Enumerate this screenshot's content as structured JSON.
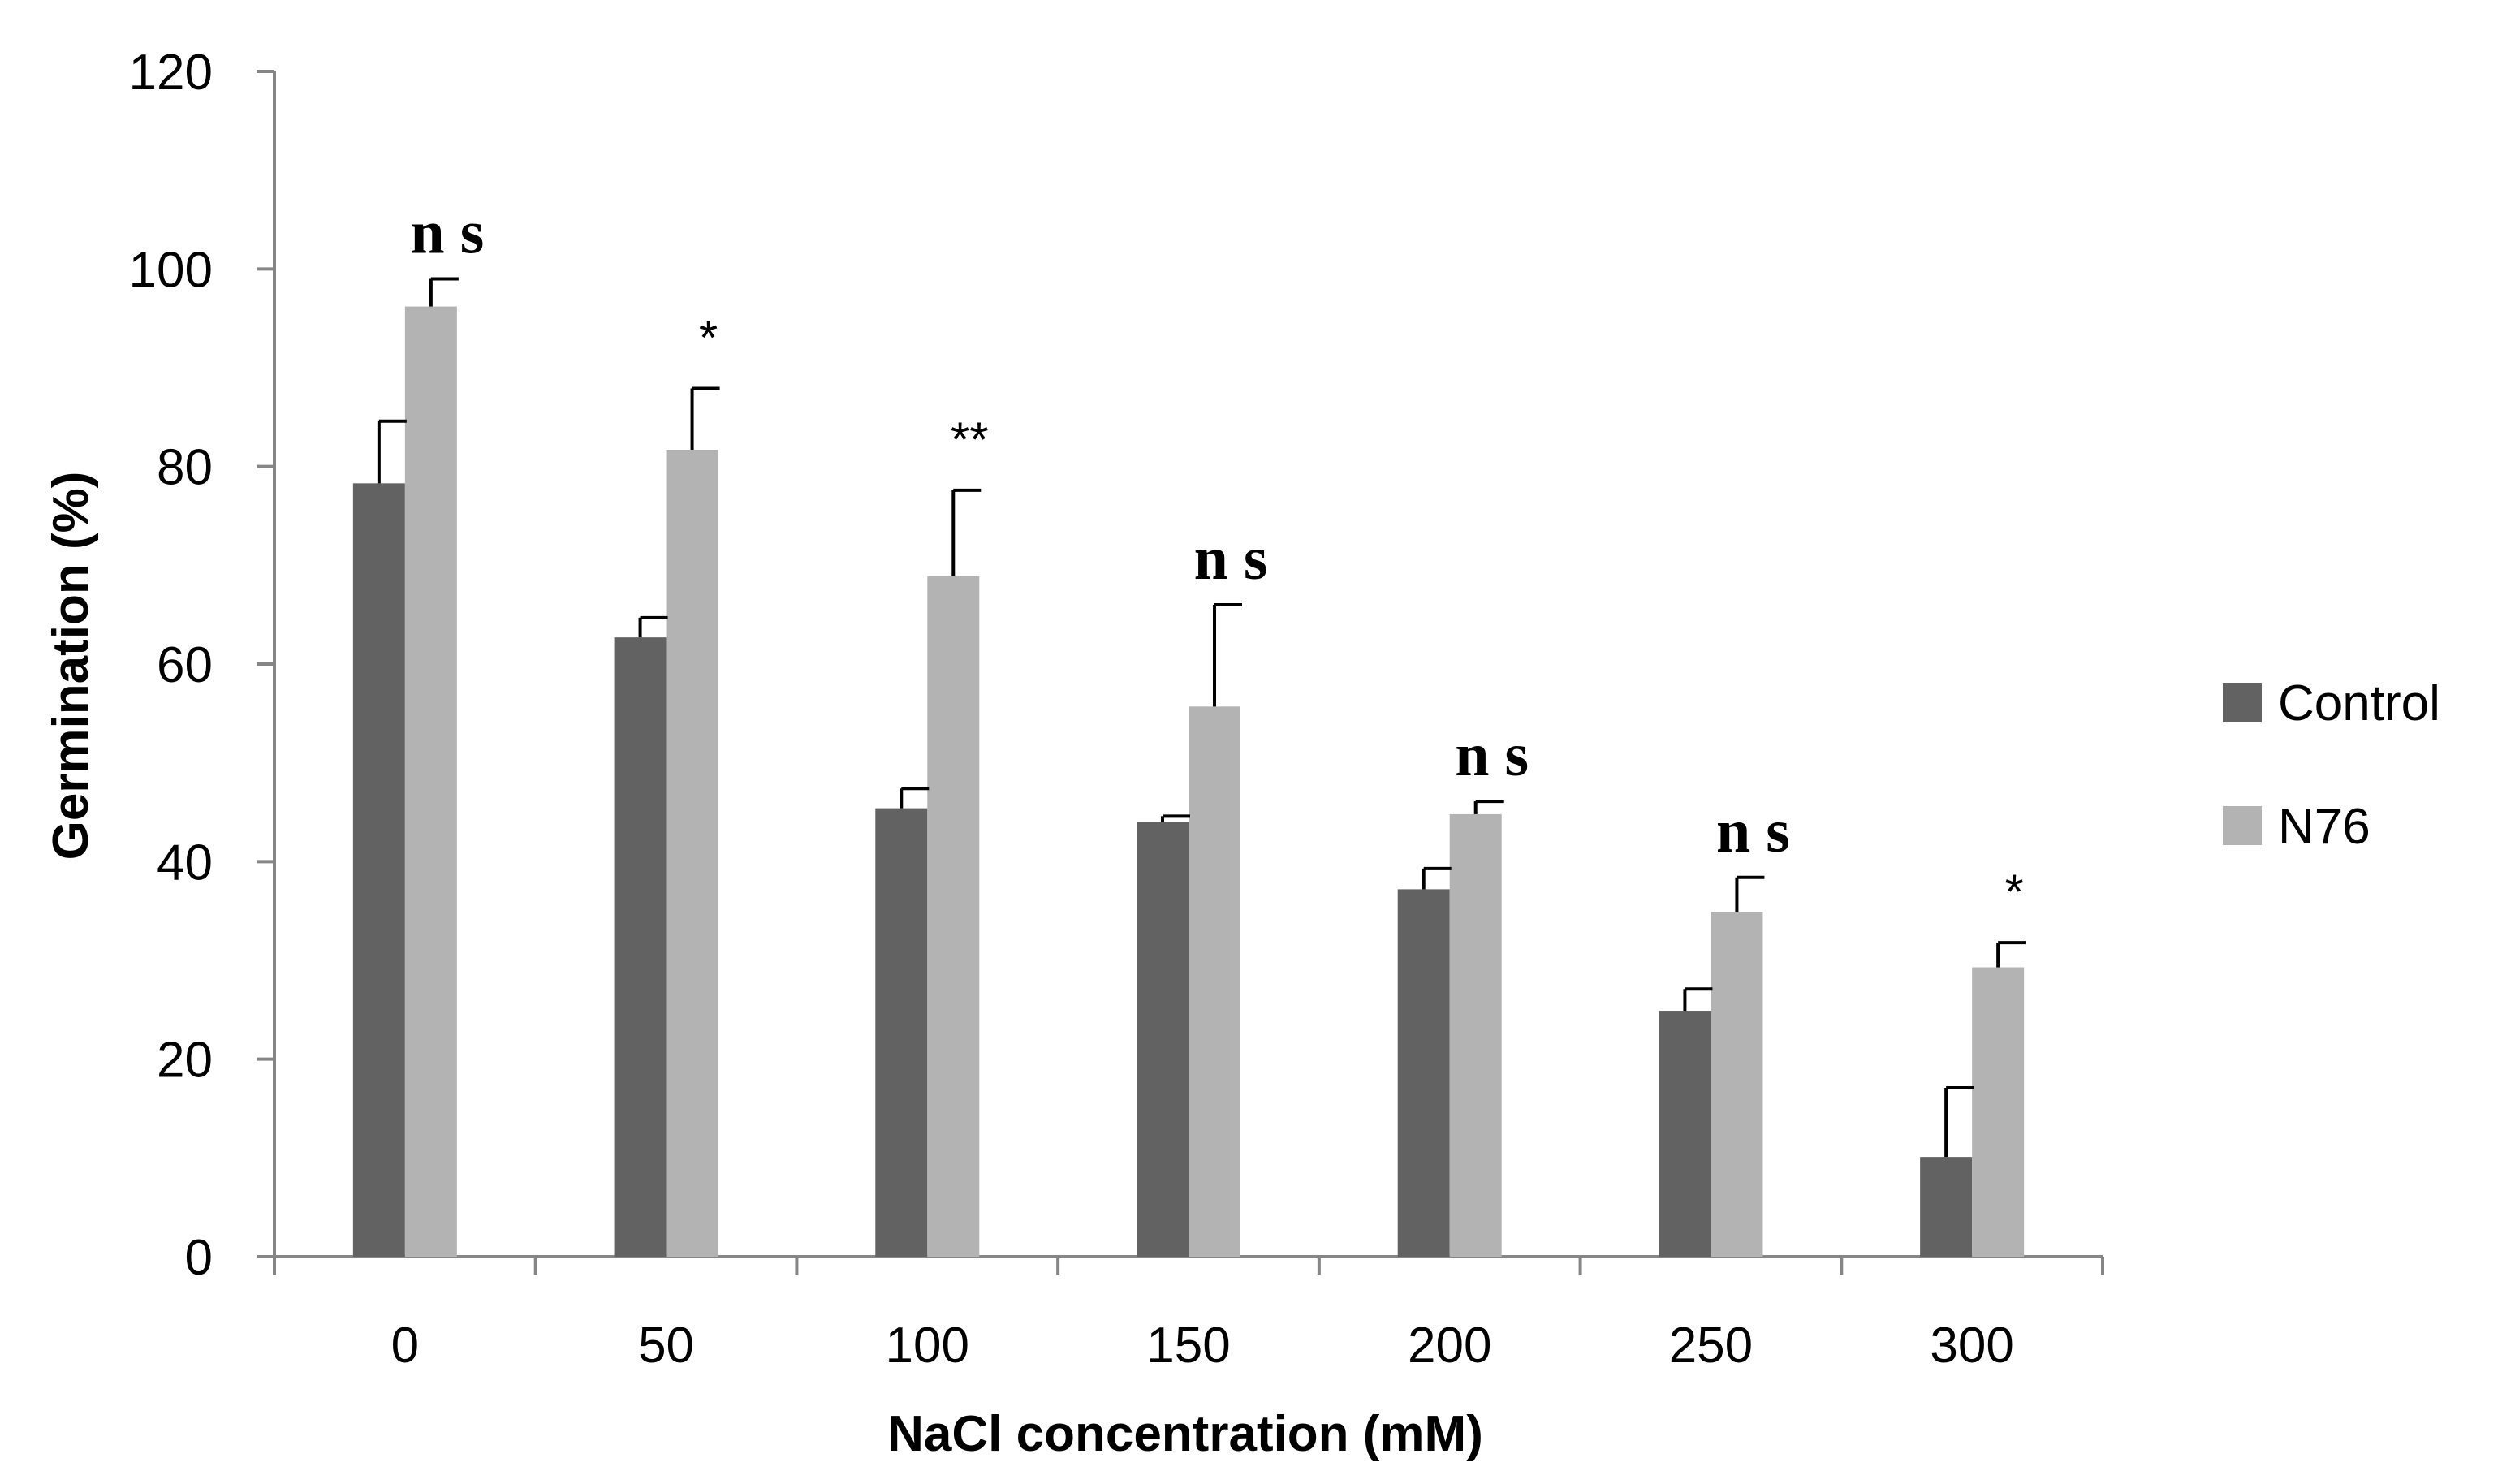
{
  "chart_data": {
    "type": "bar",
    "title": "",
    "xlabel": "NaCl concentration (mM)",
    "ylabel": "Germination (%)",
    "ylim": [
      0,
      120
    ],
    "yticks": [
      0,
      20,
      40,
      60,
      80,
      100,
      120
    ],
    "categories": [
      "0",
      "50",
      "100",
      "150",
      "200",
      "250",
      "300"
    ],
    "series": [
      {
        "name": "Control",
        "color": "#626262",
        "values": [
          78.3,
          62.7,
          45.4,
          44.0,
          37.2,
          24.9,
          10.1
        ],
        "errors": [
          6.3,
          2.0,
          2.0,
          0.6,
          2.1,
          2.2,
          7.0
        ]
      },
      {
        "name": "N76",
        "color": "#b3b3b3",
        "values": [
          96.2,
          81.7,
          68.9,
          55.7,
          44.8,
          34.9,
          29.3
        ],
        "errors": [
          2.8,
          6.2,
          8.7,
          10.3,
          1.3,
          3.5,
          2.5
        ]
      }
    ],
    "annotations": [
      "n s",
      "*",
      "**",
      "n s",
      "n s",
      "n s",
      "*"
    ],
    "legend": "right",
    "grid": false
  }
}
